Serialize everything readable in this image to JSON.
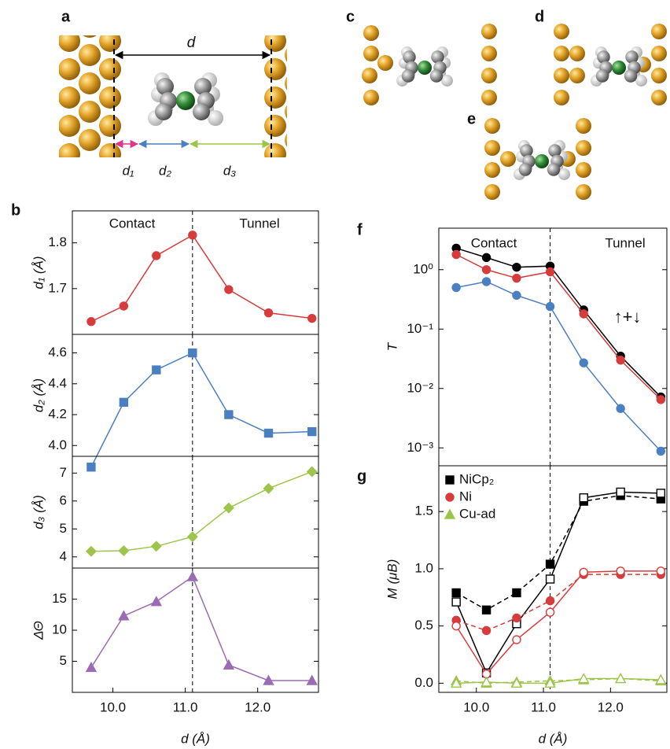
{
  "structure_labels": {
    "a": "a",
    "a_distance": "d",
    "d1": "d₁",
    "d2": "d₂",
    "d3": "d₃",
    "c": "c",
    "d": "d",
    "e": "e"
  },
  "chart_data": [
    {
      "type": "line",
      "label": "b",
      "ylabel": "d₁ (Å)",
      "annotations": [
        "Contact",
        "Tunnel"
      ],
      "x": [
        9.7,
        10.15,
        10.6,
        11.1,
        11.6,
        12.15,
        12.75
      ],
      "xlim": [
        9.44,
        12.84
      ],
      "vline": 11.1,
      "ylim": [
        1.6,
        1.87
      ],
      "yticks": [
        1.7,
        1.8
      ],
      "series": [
        {
          "color": "#d63c3c",
          "marker": "circle",
          "filled": true,
          "dashed": false,
          "values": [
            1.628,
            1.662,
            1.772,
            1.817,
            1.698,
            1.647,
            1.635
          ]
        }
      ]
    },
    {
      "type": "line",
      "ylabel": "d₂ (Å)",
      "x": [
        9.7,
        10.15,
        10.6,
        11.1,
        11.6,
        12.15,
        12.75
      ],
      "xlim": [
        9.44,
        12.84
      ],
      "vline": 11.1,
      "ylim": [
        3.93,
        4.72
      ],
      "yticks": [
        {
          "value": 4.0,
          "label": "4.0"
        },
        {
          "value": 4.2,
          "label": "4.2"
        },
        {
          "value": 4.4,
          "label": "4.4"
        },
        {
          "value": 4.6,
          "label": "4.6"
        }
      ],
      "series": [
        {
          "color": "#4a7fc1",
          "marker": "square",
          "filled": true,
          "dashed": false,
          "values": [
            3.86,
            4.28,
            4.49,
            4.6,
            4.2,
            4.08,
            4.09
          ]
        }
      ]
    },
    {
      "type": "line",
      "ylabel": "d₃ (Å)",
      "x": [
        9.7,
        10.15,
        10.6,
        11.1,
        11.6,
        12.15,
        12.75
      ],
      "xlim": [
        9.44,
        12.84
      ],
      "vline": 11.1,
      "ylim": [
        3.6,
        7.6
      ],
      "yticks": [
        4,
        5,
        6,
        7
      ],
      "series": [
        {
          "color": "#9dc54b",
          "marker": "diamond",
          "filled": true,
          "dashed": false,
          "values": [
            4.2,
            4.22,
            4.38,
            4.72,
            5.75,
            6.45,
            7.05
          ]
        }
      ]
    },
    {
      "type": "line",
      "ylabel": "ΔΘ",
      "xlabel": "d (Å)",
      "x": [
        9.7,
        10.15,
        10.6,
        11.1,
        11.6,
        12.15,
        12.75
      ],
      "xlim": [
        9.44,
        12.84
      ],
      "vline": 11.1,
      "xticks": [
        {
          "value": 10,
          "label": "10.0"
        },
        {
          "value": 11,
          "label": "11.0"
        },
        {
          "value": 12,
          "label": "12.0"
        }
      ],
      "ylim": [
        0,
        20
      ],
      "yticks": [
        5,
        10,
        15
      ],
      "series": [
        {
          "color": "#9b6bb5",
          "marker": "triangle",
          "filled": true,
          "dashed": false,
          "values": [
            4,
            12.3,
            14.6,
            18.6,
            4.4,
            1.9,
            1.9
          ]
        }
      ]
    },
    {
      "type": "line",
      "label": "f",
      "ylabel": "T",
      "annotations": [
        "Contact",
        "Tunnel",
        "↑+↓"
      ],
      "log": true,
      "x": [
        9.7,
        10.15,
        10.6,
        11.1,
        11.6,
        12.15,
        12.75
      ],
      "xlim": [
        9.44,
        12.84
      ],
      "vline": 11.1,
      "ylim": [
        0.0005,
        5
      ],
      "yticks": [
        {
          "value": 0.001,
          "label": "10⁻³"
        },
        {
          "value": 0.01,
          "label": "10⁻²"
        },
        {
          "value": 0.1,
          "label": "10⁻¹"
        },
        {
          "value": 1,
          "label": "10⁰"
        }
      ],
      "series": [
        {
          "color": "#000000",
          "marker": "circle",
          "filled": true,
          "dashed": false,
          "values": [
            2.3,
            1.6,
            1.1,
            1.15,
            0.21,
            0.035,
            0.0072
          ]
        },
        {
          "color": "#d63c3c",
          "marker": "circle",
          "filled": true,
          "dashed": false,
          "values": [
            1.8,
            1.0,
            0.72,
            0.92,
            0.18,
            0.03,
            0.0065
          ]
        },
        {
          "color": "#4a7fc1",
          "marker": "circle",
          "filled": true,
          "dashed": false,
          "values": [
            0.5,
            0.63,
            0.37,
            0.24,
            0.027,
            0.0046,
            0.00088
          ]
        }
      ]
    },
    {
      "type": "line",
      "label": "g",
      "ylabel": "M (μB)",
      "xlabel": "d (Å)",
      "x": [
        9.7,
        10.15,
        10.6,
        11.1,
        11.6,
        12.15,
        12.75
      ],
      "xlim": [
        9.44,
        12.84
      ],
      "vline": 11.1,
      "xticks": [
        {
          "value": 10,
          "label": "10.0"
        },
        {
          "value": 11,
          "label": "11.0"
        },
        {
          "value": 12,
          "label": "12.0"
        }
      ],
      "ylim": [
        -0.08,
        1.9
      ],
      "yticks": [
        {
          "value": 0,
          "label": "0.0"
        },
        {
          "value": 0.5,
          "label": "0.5"
        },
        {
          "value": 1,
          "label": "1.0"
        },
        {
          "value": 1.5,
          "label": "1.5"
        }
      ],
      "legend": "top-left",
      "series": [
        {
          "name": "NiCp₂",
          "color": "#000000",
          "marker": "square",
          "filled": true,
          "dashed": true,
          "values": [
            0.79,
            0.64,
            0.79,
            1.04,
            1.59,
            1.64,
            1.61
          ]
        },
        {
          "color": "#000000",
          "marker": "square",
          "filled": false,
          "dashed": false,
          "values": [
            0.71,
            0.09,
            0.52,
            0.91,
            1.62,
            1.67,
            1.66
          ]
        },
        {
          "name": "Ni",
          "color": "#d63c3c",
          "marker": "circle",
          "filled": true,
          "dashed": true,
          "values": [
            0.55,
            0.46,
            0.57,
            0.72,
            0.95,
            0.95,
            0.95
          ]
        },
        {
          "color": "#d63c3c",
          "marker": "circle",
          "filled": false,
          "dashed": false,
          "values": [
            0.5,
            0.08,
            0.38,
            0.62,
            0.97,
            0.98,
            0.98
          ]
        },
        {
          "name": "Cu-ad",
          "color": "#9dc54b",
          "marker": "triangle",
          "filled": true,
          "dashed": true,
          "values": [
            0.02,
            0.0,
            0.01,
            0.02,
            0.03,
            0.04,
            0.02
          ]
        },
        {
          "color": "#9dc54b",
          "marker": "triangle",
          "filled": false,
          "dashed": false,
          "values": [
            0.0,
            0.01,
            0.0,
            0.0,
            0.04,
            0.04,
            0.03
          ]
        }
      ]
    }
  ]
}
